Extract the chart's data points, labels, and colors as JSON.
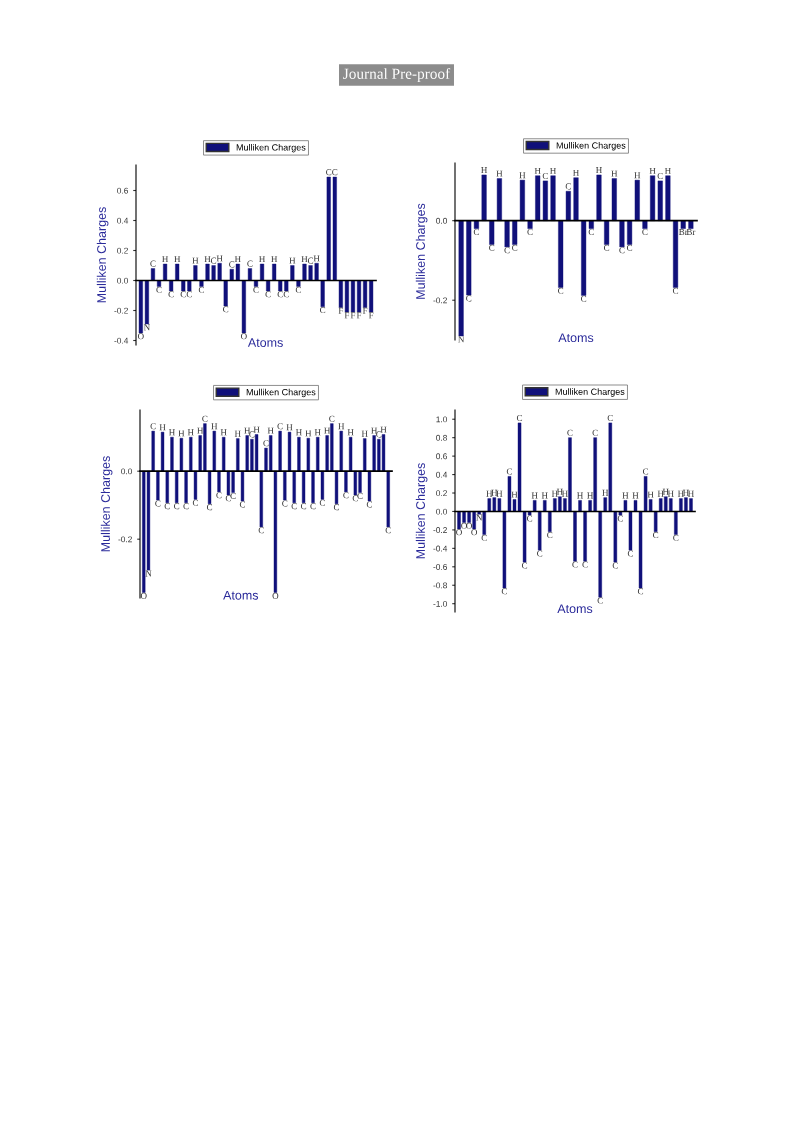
{
  "chart_data": [
    {
      "type": "bar",
      "annotations": [
        "Journal Pre-proof"
      ],
      "xlabel": "Atoms",
      "ylabel": "Mulliken Charges",
      "legend": "top",
      "categories": [
        "O",
        "N",
        "C",
        "C",
        "H",
        "C",
        "H",
        "C",
        "C",
        "H",
        "C",
        "H",
        "C",
        "H",
        "C",
        "C",
        "H",
        "O",
        "C",
        "C",
        "H",
        "C",
        "H",
        "C",
        "C",
        "H",
        "C",
        "H",
        "C",
        "H",
        "C",
        "C",
        "C",
        "F",
        "F",
        "F",
        "F",
        "F",
        "F"
      ],
      "series": [
        {
          "name": "Mulliken Charges",
          "color": "#10107a",
          "values": [
            -0.35,
            -0.29,
            0.08,
            -0.04,
            0.11,
            -0.07,
            0.11,
            -0.07,
            -0.07,
            0.1,
            -0.04,
            0.11,
            0.1,
            0.115,
            -0.17,
            0.075,
            0.11,
            -0.35,
            0.08,
            -0.04,
            0.11,
            -0.07,
            0.11,
            -0.07,
            -0.07,
            0.1,
            -0.04,
            0.11,
            0.1,
            0.115,
            -0.175,
            0.69,
            0.69,
            -0.18,
            -0.21,
            -0.21,
            -0.21,
            -0.18,
            -0.21
          ]
        }
      ],
      "ylim": [
        -0.43,
        0.77
      ],
      "yticks": [
        -0.4,
        -0.2,
        {
          "value": 0,
          "label": "0.0"
        },
        0.2,
        0.4,
        0.6
      ]
    },
    {
      "type": "bar",
      "xlabel": "Atoms",
      "ylabel": "Mulliken Charges",
      "legend": "top",
      "categories": [
        "N",
        "C",
        "C",
        "H",
        "C",
        "H",
        "C",
        "C",
        "H",
        "C",
        "H",
        "C",
        "H",
        "C",
        "C",
        "H",
        "C",
        "C",
        "H",
        "C",
        "H",
        "C",
        "C",
        "H",
        "C",
        "H",
        "C",
        "H",
        "C",
        "Br",
        "Br"
      ],
      "series": [
        {
          "name": "Mulliken Charges",
          "color": "#10107a",
          "values": [
            -0.29,
            -0.187,
            -0.02,
            0.115,
            -0.06,
            0.106,
            -0.066,
            -0.06,
            0.102,
            -0.02,
            0.113,
            0.1,
            0.113,
            -0.168,
            0.074,
            0.108,
            -0.188,
            -0.02,
            0.115,
            -0.06,
            0.106,
            -0.066,
            -0.06,
            0.102,
            -0.02,
            0.113,
            0.1,
            0.113,
            -0.168,
            -0.02,
            -0.02
          ]
        }
      ],
      "ylim": [
        -0.3,
        0.145
      ],
      "yticks": [
        -0.2,
        {
          "value": 0,
          "label": "0.0"
        }
      ]
    },
    {
      "type": "bar",
      "xlabel": "Atoms",
      "ylabel": "Mulliken Charges",
      "legend": "top",
      "categories": [
        "O",
        "N",
        "C",
        "C",
        "H",
        "C",
        "H",
        "C",
        "H",
        "C",
        "H",
        "C",
        "H",
        "C",
        "C",
        "H",
        "C",
        "H",
        "C",
        "C",
        "H",
        "C",
        "H",
        "C",
        "H",
        "C",
        "C",
        "H",
        "O",
        "C",
        "C",
        "H",
        "C",
        "H",
        "C",
        "H",
        "C",
        "H",
        "C",
        "H",
        "C",
        "C",
        "H",
        "C",
        "H",
        "C",
        "C",
        "H",
        "C",
        "H",
        "C",
        "H",
        "C"
      ],
      "series": [
        {
          "name": "Mulliken Charges",
          "color": "#10107a",
          "values": [
            -0.357,
            -0.291,
            0.118,
            -0.085,
            0.115,
            -0.093,
            0.1,
            -0.093,
            0.097,
            -0.093,
            0.1,
            -0.083,
            0.105,
            0.14,
            -0.096,
            0.118,
            -0.061,
            0.1,
            -0.07,
            -0.063,
            0.096,
            -0.088,
            0.105,
            0.094,
            0.108,
            -0.164,
            0.068,
            0.105,
            -0.357,
            0.118,
            -0.085,
            0.115,
            -0.093,
            0.1,
            -0.093,
            0.097,
            -0.093,
            0.1,
            -0.083,
            0.105,
            0.14,
            -0.096,
            0.118,
            -0.061,
            0.1,
            -0.07,
            -0.063,
            0.096,
            -0.088,
            0.105,
            0.094,
            0.108,
            -0.164
          ]
        }
      ],
      "ylim": [
        -0.373,
        0.18
      ],
      "yticks": [
        -0.2,
        {
          "value": 0,
          "label": "0.0"
        }
      ]
    },
    {
      "type": "bar",
      "xlabel": "Atoms",
      "ylabel": "Mulliken Charges",
      "legend": "top",
      "categories": [
        "O",
        "O",
        "O",
        "O",
        "N",
        "C",
        "H",
        "H",
        "H",
        "C",
        "C",
        "H",
        "C",
        "C",
        "C",
        "H",
        "C",
        "H",
        "C",
        "H",
        "H",
        "H",
        "C",
        "C",
        "H",
        "C",
        "H",
        "C",
        "C",
        "H",
        "C",
        "C",
        "C",
        "H",
        "C",
        "H",
        "C",
        "C",
        "H",
        "C",
        "H",
        "H",
        "H",
        "C",
        "H",
        "H",
        "H"
      ],
      "series": [
        {
          "name": "Mulliken Charges",
          "color": "#10107a",
          "values": [
            -0.19,
            -0.12,
            -0.12,
            -0.19,
            -0.03,
            -0.25,
            0.14,
            0.15,
            0.14,
            -0.83,
            0.38,
            0.13,
            0.96,
            -0.55,
            -0.04,
            0.12,
            -0.42,
            0.12,
            -0.22,
            0.14,
            0.16,
            0.14,
            0.8,
            -0.54,
            0.12,
            -0.54,
            0.12,
            0.8,
            -0.93,
            0.15,
            0.96,
            -0.55,
            -0.04,
            0.12,
            -0.42,
            0.12,
            -0.83,
            0.38,
            0.13,
            -0.22,
            0.14,
            0.16,
            0.14,
            -0.25,
            0.14,
            0.15,
            0.14
          ]
        }
      ],
      "ylim": [
        -1.09,
        1.1
      ],
      "yticks": [
        {
          "value": -1,
          "label": "-1.0"
        },
        -0.8,
        -0.6,
        -0.4,
        -0.2,
        {
          "value": 0,
          "label": "0.0"
        },
        0.2,
        0.4,
        0.6,
        0.8,
        {
          "value": 1,
          "label": "1.0"
        }
      ]
    }
  ]
}
